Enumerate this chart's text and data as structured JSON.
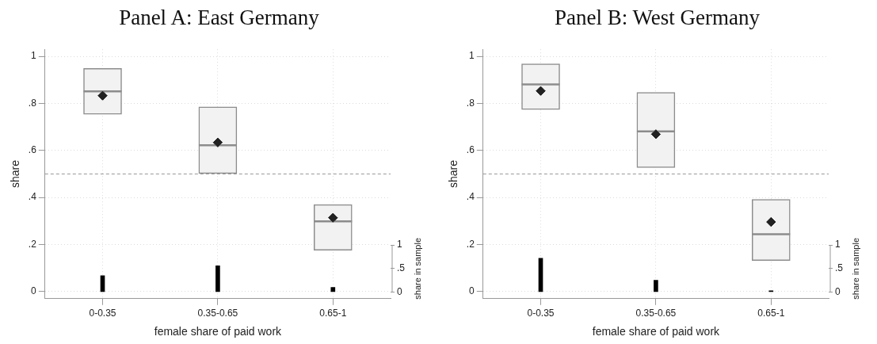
{
  "chart_data": [
    {
      "type": "box",
      "title": "Panel A: East Germany",
      "xlabel": "female share of paid work",
      "ylabel": "share",
      "y2label": "share in sample",
      "categories": [
        "0-0.35",
        "0.35-0.65",
        "0.65-1"
      ],
      "ylim": [
        -0.03,
        1.03
      ],
      "yticks": [
        {
          "value": 0,
          "label": "0"
        },
        {
          "value": 0.2,
          "label": ".2"
        },
        {
          "value": 0.4,
          "label": ".4"
        },
        {
          "value": 0.6,
          "label": ".6"
        },
        {
          "value": 0.8,
          "label": ".8"
        },
        {
          "value": 1,
          "label": "1"
        }
      ],
      "y2lim": [
        -0.14,
        5.16
      ],
      "y2ticks": [
        {
          "value": 0,
          "label": "0"
        },
        {
          "value": 0.5,
          "label": ".5"
        },
        {
          "value": 1,
          "label": "1"
        }
      ],
      "grid": true,
      "marker": "diamond",
      "ref_lines": [
        {
          "axis": "y",
          "value": 0.5,
          "color": "#999999",
          "line_style": "dashed"
        }
      ],
      "series": [
        {
          "color": "#8c8c8c",
          "boxes": [
            {
              "low": 0.754,
              "q1": 0.754,
              "median": 0.851,
              "q3": 0.949,
              "high": 0.949,
              "mean": 0.833
            },
            {
              "low": 0.502,
              "q1": 0.502,
              "median": 0.622,
              "q3": 0.785,
              "high": 0.785,
              "mean": 0.634
            },
            {
              "low": 0.176,
              "q1": 0.176,
              "median": 0.299,
              "q3": 0.37,
              "high": 0.37,
              "mean": 0.314
            }
          ]
        },
        {
          "type": "bar",
          "axis": "y2",
          "color": "#000000",
          "values": [
            0.35,
            0.56,
            0.1
          ]
        }
      ]
    },
    {
      "type": "box",
      "title": "Panel B: West Germany",
      "xlabel": "female share of paid work",
      "ylabel": "share",
      "y2label": "share in sample",
      "categories": [
        "0-0.35",
        "0.35-0.65",
        "0.65-1"
      ],
      "ylim": [
        -0.03,
        1.03
      ],
      "yticks": [
        {
          "value": 0,
          "label": "0"
        },
        {
          "value": 0.2,
          "label": ".2"
        },
        {
          "value": 0.4,
          "label": ".4"
        },
        {
          "value": 0.6,
          "label": ".6"
        },
        {
          "value": 0.8,
          "label": ".8"
        },
        {
          "value": 1,
          "label": "1"
        }
      ],
      "y2lim": [
        -0.14,
        5.16
      ],
      "y2ticks": [
        {
          "value": 0,
          "label": "0"
        },
        {
          "value": 0.5,
          "label": ".5"
        },
        {
          "value": 1,
          "label": "1"
        }
      ],
      "grid": true,
      "marker": "diamond",
      "ref_lines": [
        {
          "axis": "y",
          "value": 0.5,
          "color": "#999999",
          "line_style": "dashed"
        }
      ],
      "series": [
        {
          "color": "#8c8c8c",
          "boxes": [
            {
              "low": 0.774,
              "q1": 0.774,
              "median": 0.881,
              "q3": 0.968,
              "high": 0.968,
              "mean": 0.853
            },
            {
              "low": 0.527,
              "q1": 0.527,
              "median": 0.681,
              "q3": 0.847,
              "high": 0.847,
              "mean": 0.669
            },
            {
              "low": 0.132,
              "q1": 0.132,
              "median": 0.244,
              "q3": 0.392,
              "high": 0.392,
              "mean": 0.296
            }
          ]
        },
        {
          "type": "bar",
          "axis": "y2",
          "color": "#000000",
          "values": [
            0.72,
            0.25,
            0.03
          ]
        }
      ]
    }
  ]
}
